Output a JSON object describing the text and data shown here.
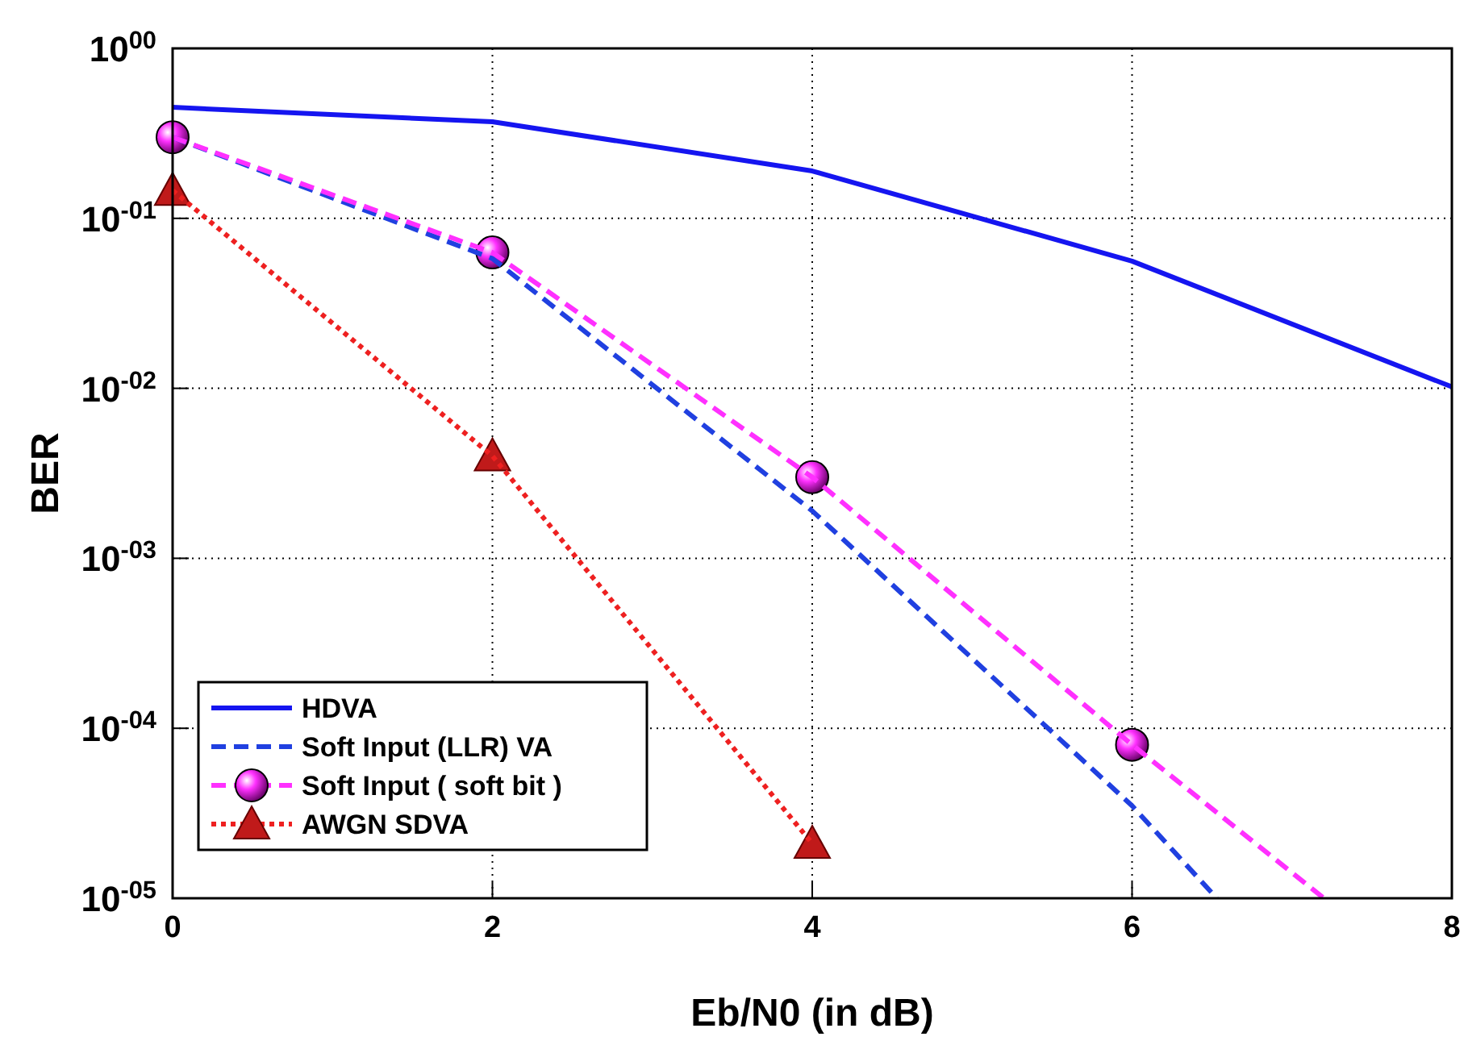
{
  "chart_data": {
    "type": "line",
    "xlabel": "Eb/N0 (in dB)",
    "ylabel": "BER",
    "log": "y",
    "grid": true,
    "legend": "bottom left",
    "xlim": [
      0,
      8
    ],
    "xticks": [
      0,
      2,
      4,
      6,
      8
    ],
    "ylim": [
      1e-05,
      1
    ],
    "yticks": [
      {
        "value": 1e-05,
        "label": "10$^{-05}$"
      },
      {
        "value": 0.0001,
        "label": "10$^{-04}$"
      },
      {
        "value": 0.001,
        "label": "10$^{-03}$"
      },
      {
        "value": 0.01,
        "label": "10$^{-02}$"
      },
      {
        "value": 0.1,
        "label": "10$^{-01}$"
      },
      {
        "value": 1,
        "label": "10$^{00}$"
      }
    ],
    "series": [
      {
        "name": "HDVA",
        "color": "#1515f0",
        "line_style": "solid",
        "marker": "none",
        "x": [
          0,
          2,
          4,
          6,
          8
        ],
        "values": [
          0.45,
          0.37,
          0.19,
          0.056,
          0.0102
        ]
      },
      {
        "name": "Soft Input (LLR) VA",
        "color": "#2040e0",
        "line_style": "dashed",
        "marker": "none",
        "x": [
          0,
          2,
          4,
          6,
          6.53
        ],
        "values": [
          0.3,
          0.058,
          0.0019,
          3.5e-05,
          1e-05
        ]
      },
      {
        "name": "Soft Input ( soft bit )",
        "color": "#ff30ff",
        "line_style": "dashed",
        "marker": "circle",
        "x": [
          0,
          2,
          4,
          6,
          7.2
        ],
        "values": [
          0.3,
          0.063,
          0.003,
          8e-05,
          1e-05
        ]
      },
      {
        "name": "AWGN SDVA",
        "color": "#ee2020",
        "line_style": "dotted",
        "marker": "triangle",
        "x": [
          0,
          2,
          4
        ],
        "values": [
          0.146,
          0.004,
          2.1e-05
        ]
      }
    ]
  }
}
